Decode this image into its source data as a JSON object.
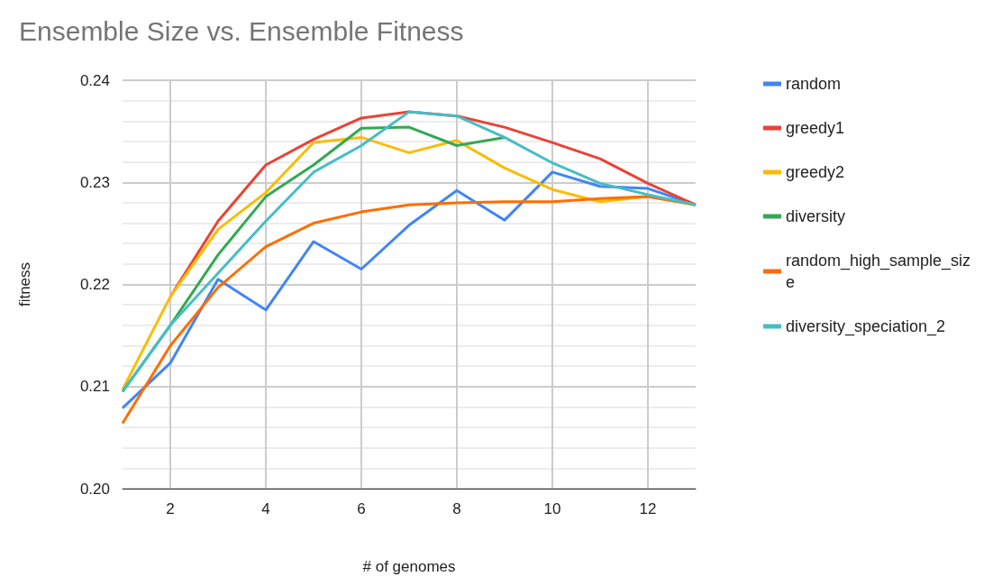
{
  "chart_data": {
    "type": "line",
    "title": "Ensemble Size vs. Ensemble Fitness",
    "xlabel": "# of genomes",
    "ylabel": "fitness",
    "x": [
      1,
      2,
      3,
      4,
      5,
      6,
      7,
      8,
      9,
      10,
      11,
      12,
      13
    ],
    "series": [
      {
        "name": "random",
        "color": "#4285f4",
        "values": [
          0.2079,
          0.2123,
          0.2205,
          0.2175,
          0.2242,
          0.2215,
          0.2258,
          0.2292,
          0.2263,
          0.231,
          0.2296,
          0.2294,
          0.2278
        ]
      },
      {
        "name": "greedy1",
        "color": "#ea4335",
        "values": [
          null,
          0.2188,
          0.2262,
          0.2317,
          0.2342,
          0.2363,
          0.2369,
          0.2365,
          0.2354,
          0.2339,
          0.2323,
          0.2299,
          0.2278
        ]
      },
      {
        "name": "greedy2",
        "color": "#fbbc04",
        "values": [
          0.2097,
          0.2188,
          0.2254,
          0.229,
          0.2339,
          0.2344,
          0.2329,
          0.2341,
          0.2314,
          0.2293,
          0.2281,
          0.2286,
          0.2278
        ]
      },
      {
        "name": "diversity",
        "color": "#34a853",
        "values": [
          0.2095,
          0.216,
          0.2229,
          0.2286,
          0.2317,
          0.2353,
          0.2354,
          0.2336,
          0.2344,
          null,
          null,
          null,
          null
        ]
      },
      {
        "name": "random_high_sample_size",
        "color": "#ff6d01",
        "values": [
          0.2064,
          0.214,
          0.2197,
          0.2237,
          0.226,
          0.2271,
          0.2278,
          0.228,
          0.2281,
          0.2281,
          0.2284,
          0.2286,
          0.2278
        ]
      },
      {
        "name": "diversity_speciation_2",
        "color": "#46bdc6",
        "values": [
          0.2095,
          0.216,
          0.2211,
          0.2262,
          0.231,
          0.2336,
          0.2369,
          0.2365,
          0.2344,
          0.2319,
          0.2299,
          0.2288,
          0.2278
        ]
      }
    ],
    "xlim": [
      1,
      13
    ],
    "xticks": [
      2,
      4,
      6,
      8,
      10,
      12
    ],
    "ylim": [
      0.2,
      0.24
    ],
    "yticks": [
      {
        "value": 0.2,
        "label": "0.20"
      },
      0.21,
      0.22,
      0.23,
      0.24
    ],
    "grid": true,
    "legend": "right",
    "marker": "none",
    "line_style": "solid"
  }
}
